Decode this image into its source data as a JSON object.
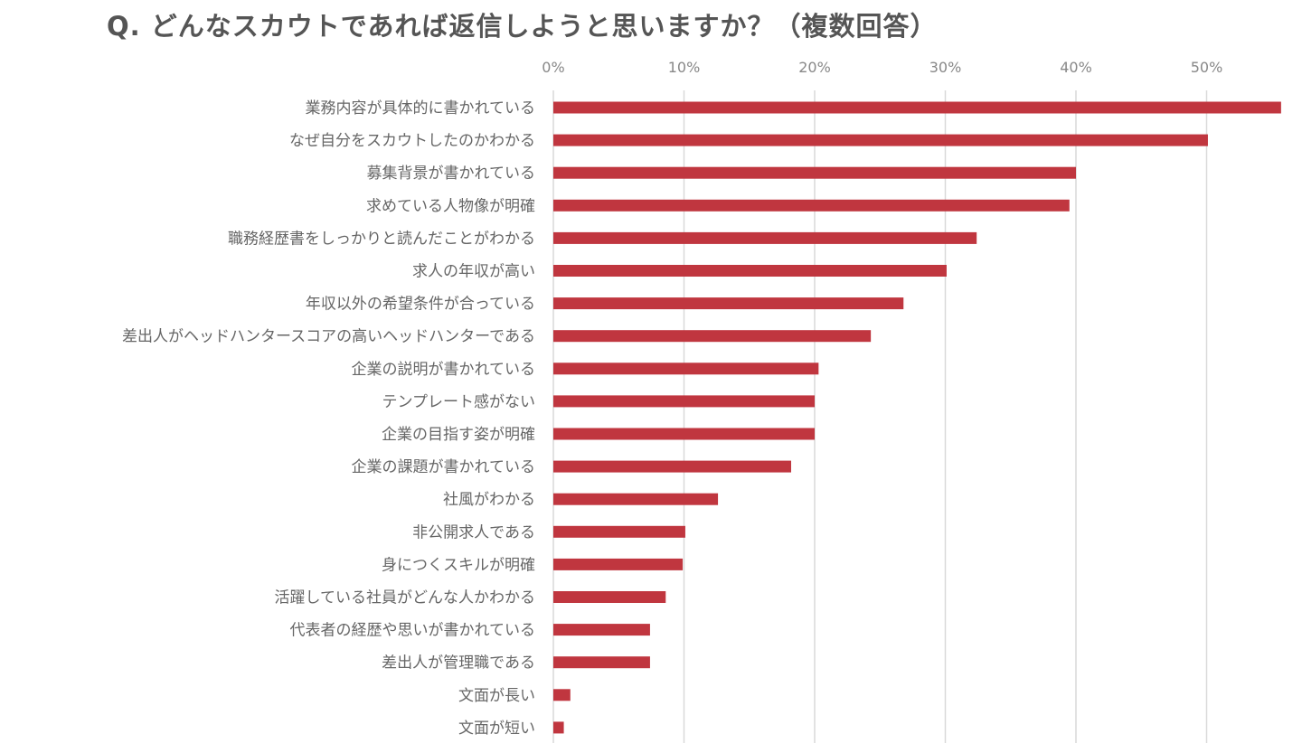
{
  "chart_data": {
    "type": "bar",
    "orientation": "horizontal",
    "title": "Q. どんなスカウトであれば返信しようと思いますか？（複数回答）",
    "xlabel": "",
    "ylabel": "",
    "xlim": [
      0,
      55.5
    ],
    "x_ticks": [
      "0%",
      "10%",
      "20%",
      "30%",
      "40%",
      "50%"
    ],
    "x_tick_values": [
      0,
      10,
      20,
      30,
      40,
      50
    ],
    "grid": "vertical",
    "legend": "none",
    "bar_color": "#c0363f",
    "categories": [
      "業務内容が具体的に書かれている",
      "なぜ自分をスカウトしたのかわかる",
      "募集背景が書かれている",
      "求めている人物像が明確",
      "職務経歴書をしっかりと読んだことがわかる",
      "求人の年収が高い",
      "年収以外の希望条件が合っている",
      "差出人がヘッドハンタースコアの高いヘッドハンターである",
      "企業の説明が書かれている",
      "テンプレート感がない",
      "企業の目指す姿が明確",
      "企業の課題が書かれている",
      "社風がわかる",
      "非公開求人である",
      "身につくスキルが明確",
      "活躍している社員がどんな人かわかる",
      "代表者の経歴や思いが書かれている",
      "差出人が管理職である",
      "文面が長い",
      "文面が短い"
    ],
    "values": [
      55.7,
      50.1,
      40.0,
      39.5,
      32.4,
      30.1,
      26.8,
      24.3,
      20.3,
      20.0,
      20.0,
      18.2,
      12.6,
      10.1,
      9.9,
      8.6,
      7.4,
      7.4,
      1.3,
      0.8
    ]
  }
}
